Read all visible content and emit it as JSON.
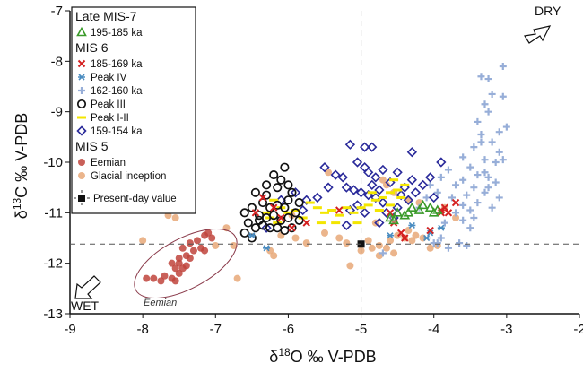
{
  "chart_data": {
    "type": "scatter",
    "xlabel": "δ18O ‰ V-PDB",
    "ylabel": "δ13C ‰ V-PDB",
    "xlim": [
      -9,
      -2
    ],
    "ylim": [
      -13,
      -7
    ],
    "xticks": [
      "-9",
      "-8",
      "-7",
      "-6",
      "-5",
      "-4",
      "-3",
      "-2"
    ],
    "yticks": [
      "-7",
      "-8",
      "-9",
      "-10",
      "-11",
      "-12",
      "-13"
    ],
    "grid": false,
    "legend_position": "top-left",
    "annotations": {
      "dry": "DRY",
      "wet": "WET",
      "eemian_label": "Eemian"
    },
    "reference_lines": {
      "x": -5,
      "y": -11.62
    },
    "legend_groups": [
      {
        "title": "Late MIS-7",
        "entries": [
          "195-185 ka"
        ]
      },
      {
        "title": "MIS 6",
        "entries": [
          "185-169 ka",
          "Peak IV",
          "162-160 ka",
          "Peak III",
          "Peak  I-II",
          "159-154 ka"
        ]
      },
      {
        "title": "MIS 5",
        "entries": [
          "Eemian",
          "Glacial inception"
        ]
      },
      {
        "title": "",
        "entries": [
          "Present-day value"
        ]
      }
    ],
    "series": [
      {
        "name": "195-185 ka",
        "marker": "triangle",
        "color": "#3a9a2a",
        "points": [
          [
            -4.6,
            -11.1
          ],
          [
            -4.5,
            -11.0
          ],
          [
            -4.4,
            -11.05
          ],
          [
            -4.3,
            -10.9
          ],
          [
            -4.2,
            -10.95
          ],
          [
            -4.15,
            -10.85
          ],
          [
            -4.05,
            -10.9
          ],
          [
            -3.95,
            -10.95
          ],
          [
            -4.55,
            -11.15
          ],
          [
            -4.35,
            -11.0
          ],
          [
            -4.0,
            -11.0
          ]
        ]
      },
      {
        "name": "185-169 ka",
        "marker": "x",
        "color": "#d42020",
        "points": [
          [
            -6.45,
            -11.0
          ],
          [
            -6.35,
            -10.7
          ],
          [
            -6.2,
            -10.9
          ],
          [
            -6.1,
            -11.1
          ],
          [
            -5.95,
            -11.3
          ],
          [
            -5.75,
            -11.2
          ],
          [
            -5.3,
            -10.95
          ],
          [
            -4.6,
            -11.0
          ],
          [
            -4.55,
            -11.2
          ],
          [
            -4.45,
            -11.4
          ],
          [
            -3.9,
            -11.0
          ],
          [
            -3.85,
            -10.9
          ],
          [
            -3.8,
            -11.0
          ],
          [
            -3.7,
            -10.8
          ],
          [
            -4.05,
            -11.35
          ],
          [
            -4.4,
            -11.5
          ],
          [
            -3.9,
            -10.95
          ]
        ]
      },
      {
        "name": "Peak IV",
        "marker": "asterisk",
        "color": "#4a8cc0",
        "points": [
          [
            -6.5,
            -11.45
          ],
          [
            -6.3,
            -11.7
          ],
          [
            -4.6,
            -11.45
          ],
          [
            -4.3,
            -11.25
          ],
          [
            -4.1,
            -11.5
          ],
          [
            -4.05,
            -11.4
          ],
          [
            -3.9,
            -11.3
          ]
        ]
      },
      {
        "name": "162-160 ka",
        "marker": "plus",
        "color": "#97aed8",
        "points": [
          [
            -3.05,
            -8.1
          ],
          [
            -3.35,
            -8.3
          ],
          [
            -3.25,
            -8.35
          ],
          [
            -3.2,
            -8.65
          ],
          [
            -3.05,
            -8.7
          ],
          [
            -3.3,
            -8.85
          ],
          [
            -3.25,
            -9.0
          ],
          [
            -3.4,
            -9.2
          ],
          [
            -3.0,
            -9.3
          ],
          [
            -3.1,
            -9.4
          ],
          [
            -3.35,
            -9.45
          ],
          [
            -3.2,
            -9.6
          ],
          [
            -3.45,
            -9.7
          ],
          [
            -3.1,
            -9.8
          ],
          [
            -3.6,
            -9.9
          ],
          [
            -3.3,
            -9.95
          ],
          [
            -3.15,
            -10.0
          ],
          [
            -3.5,
            -10.1
          ],
          [
            -3.8,
            -10.15
          ],
          [
            -3.4,
            -10.25
          ],
          [
            -3.25,
            -10.3
          ],
          [
            -3.6,
            -10.35
          ],
          [
            -3.9,
            -10.3
          ],
          [
            -3.7,
            -10.45
          ],
          [
            -3.45,
            -10.5
          ],
          [
            -3.3,
            -10.6
          ],
          [
            -3.55,
            -10.65
          ],
          [
            -3.75,
            -10.7
          ],
          [
            -3.4,
            -10.8
          ],
          [
            -3.6,
            -10.85
          ],
          [
            -3.2,
            -10.9
          ],
          [
            -3.5,
            -10.95
          ],
          [
            -3.7,
            -11.0
          ],
          [
            -3.45,
            -11.1
          ],
          [
            -3.25,
            -10.5
          ],
          [
            -3.1,
            -10.7
          ],
          [
            -3.95,
            -10.6
          ],
          [
            -4.05,
            -10.45
          ],
          [
            -4.1,
            -10.7
          ],
          [
            -4.2,
            -10.9
          ],
          [
            -3.85,
            -11.2
          ],
          [
            -3.6,
            -11.15
          ],
          [
            -3.5,
            -11.3
          ],
          [
            -3.9,
            -11.5
          ],
          [
            -3.95,
            -11.6
          ],
          [
            -3.8,
            -11.7
          ],
          [
            -4.7,
            -11.8
          ],
          [
            -3.65,
            -11.6
          ],
          [
            -3.55,
            -11.65
          ],
          [
            -4.0,
            -11.6
          ],
          [
            -3.3,
            -10.2
          ],
          [
            -3.05,
            -9.95
          ],
          [
            -3.15,
            -10.4
          ],
          [
            -3.35,
            -9.6
          ]
        ]
      },
      {
        "name": "Peak III",
        "marker": "circle-open",
        "color": "#111111",
        "points": [
          [
            -6.05,
            -10.1
          ],
          [
            -6.2,
            -10.25
          ],
          [
            -6.1,
            -10.35
          ],
          [
            -6.3,
            -10.45
          ],
          [
            -6.15,
            -10.5
          ],
          [
            -6.0,
            -10.45
          ],
          [
            -5.95,
            -10.6
          ],
          [
            -6.45,
            -10.6
          ],
          [
            -6.35,
            -10.8
          ],
          [
            -6.25,
            -10.9
          ],
          [
            -6.15,
            -10.85
          ],
          [
            -6.05,
            -10.9
          ],
          [
            -6.5,
            -10.9
          ],
          [
            -6.6,
            -11.0
          ],
          [
            -6.4,
            -11.05
          ],
          [
            -6.3,
            -11.1
          ],
          [
            -6.2,
            -11.05
          ],
          [
            -6.1,
            -11.15
          ],
          [
            -6.0,
            -11.1
          ],
          [
            -5.9,
            -11.0
          ],
          [
            -5.85,
            -11.15
          ],
          [
            -6.55,
            -11.2
          ],
          [
            -6.45,
            -11.3
          ],
          [
            -6.35,
            -11.25
          ],
          [
            -6.25,
            -11.3
          ],
          [
            -6.15,
            -11.3
          ],
          [
            -6.05,
            -11.35
          ],
          [
            -5.95,
            -11.3
          ],
          [
            -6.6,
            -11.4
          ],
          [
            -6.5,
            -11.5
          ],
          [
            -6.4,
            -11.15
          ],
          [
            -6.0,
            -10.75
          ],
          [
            -5.85,
            -10.8
          ],
          [
            -6.3,
            -10.65
          ]
        ]
      },
      {
        "name": "Peak  I-II",
        "marker": "dash",
        "color": "#f3e600",
        "points": [
          [
            -6.2,
            -10.75
          ],
          [
            -6.1,
            -10.9
          ],
          [
            -6.0,
            -11.0
          ],
          [
            -6.25,
            -11.1
          ],
          [
            -6.15,
            -11.2
          ],
          [
            -5.9,
            -10.95
          ],
          [
            -5.7,
            -10.8
          ],
          [
            -5.6,
            -10.9
          ],
          [
            -5.5,
            -11.0
          ],
          [
            -5.4,
            -10.95
          ],
          [
            -5.3,
            -11.05
          ],
          [
            -5.2,
            -10.9
          ],
          [
            -5.1,
            -11.0
          ],
          [
            -5.0,
            -10.9
          ],
          [
            -4.9,
            -10.85
          ],
          [
            -4.8,
            -10.75
          ],
          [
            -4.7,
            -10.7
          ],
          [
            -4.6,
            -10.6
          ],
          [
            -4.5,
            -10.55
          ],
          [
            -4.4,
            -10.45
          ],
          [
            -4.6,
            -10.85
          ],
          [
            -4.75,
            -10.95
          ],
          [
            -5.35,
            -11.2
          ],
          [
            -5.55,
            -11.2
          ],
          [
            -5.8,
            -11.1
          ],
          [
            -4.55,
            -10.35
          ],
          [
            -4.45,
            -10.7
          ],
          [
            -4.85,
            -10.6
          ],
          [
            -5.05,
            -11.2
          ],
          [
            -6.3,
            -11.0
          ]
        ]
      },
      {
        "name": "159-154 ka",
        "marker": "diamond-open",
        "color": "#2a2a9a",
        "points": [
          [
            -5.15,
            -9.65
          ],
          [
            -4.95,
            -9.7
          ],
          [
            -4.85,
            -9.7
          ],
          [
            -4.3,
            -9.8
          ],
          [
            -5.5,
            -10.1
          ],
          [
            -5.35,
            -10.25
          ],
          [
            -5.25,
            -10.3
          ],
          [
            -5.05,
            -10.0
          ],
          [
            -4.95,
            -10.1
          ],
          [
            -4.9,
            -10.2
          ],
          [
            -4.8,
            -10.3
          ],
          [
            -4.7,
            -10.15
          ],
          [
            -4.6,
            -10.4
          ],
          [
            -4.5,
            -10.2
          ],
          [
            -4.4,
            -10.5
          ],
          [
            -5.2,
            -10.5
          ],
          [
            -5.1,
            -10.55
          ],
          [
            -5.0,
            -10.6
          ],
          [
            -4.9,
            -10.65
          ],
          [
            -4.8,
            -10.7
          ],
          [
            -4.7,
            -10.8
          ],
          [
            -5.05,
            -10.85
          ],
          [
            -5.15,
            -10.95
          ],
          [
            -4.95,
            -11.0
          ],
          [
            -4.85,
            -10.45
          ],
          [
            -4.75,
            -10.55
          ],
          [
            -5.45,
            -10.5
          ],
          [
            -5.6,
            -10.7
          ],
          [
            -5.75,
            -10.75
          ],
          [
            -5.9,
            -10.6
          ],
          [
            -6.1,
            -10.75
          ],
          [
            -5.8,
            -10.95
          ],
          [
            -6.3,
            -11.3
          ],
          [
            -4.45,
            -10.65
          ],
          [
            -4.35,
            -10.75
          ],
          [
            -4.25,
            -10.6
          ],
          [
            -4.15,
            -10.45
          ],
          [
            -4.65,
            -11.0
          ],
          [
            -4.55,
            -11.1
          ],
          [
            -4.75,
            -11.2
          ],
          [
            -5.2,
            -11.25
          ],
          [
            -4.05,
            -10.3
          ],
          [
            -4.5,
            -10.9
          ],
          [
            -4.3,
            -10.35
          ],
          [
            -4.0,
            -10.7
          ],
          [
            -3.9,
            -10.0
          ]
        ]
      },
      {
        "name": "Eemian",
        "marker": "circle-filled",
        "color": "#c0443c",
        "points": [
          [
            -7.95,
            -12.3
          ],
          [
            -7.85,
            -12.3
          ],
          [
            -7.75,
            -12.35
          ],
          [
            -7.7,
            -12.25
          ],
          [
            -7.6,
            -12.3
          ],
          [
            -7.55,
            -12.35
          ],
          [
            -7.5,
            -12.2
          ],
          [
            -7.6,
            -12.0
          ],
          [
            -7.5,
            -12.0
          ],
          [
            -7.45,
            -12.1
          ],
          [
            -7.4,
            -12.05
          ],
          [
            -7.5,
            -11.9
          ],
          [
            -7.4,
            -11.85
          ],
          [
            -7.35,
            -11.9
          ],
          [
            -7.3,
            -11.75
          ],
          [
            -7.35,
            -11.6
          ],
          [
            -7.25,
            -11.55
          ],
          [
            -7.2,
            -11.7
          ],
          [
            -7.15,
            -11.45
          ],
          [
            -7.1,
            -11.4
          ],
          [
            -7.05,
            -11.5
          ],
          [
            -7.15,
            -11.75
          ],
          [
            -7.45,
            -11.7
          ],
          [
            -7.55,
            -12.1
          ]
        ]
      },
      {
        "name": "Glacial inception",
        "marker": "circle-filled",
        "color": "#e8a878",
        "points": [
          [
            -8.0,
            -11.55
          ],
          [
            -7.65,
            -11.05
          ],
          [
            -7.55,
            -11.1
          ],
          [
            -7.0,
            -11.65
          ],
          [
            -6.75,
            -11.65
          ],
          [
            -6.7,
            -12.3
          ],
          [
            -6.25,
            -11.75
          ],
          [
            -6.2,
            -11.85
          ],
          [
            -6.1,
            -11.45
          ],
          [
            -5.9,
            -11.5
          ],
          [
            -5.75,
            -11.6
          ],
          [
            -5.5,
            -11.4
          ],
          [
            -5.3,
            -11.5
          ],
          [
            -5.2,
            -11.6
          ],
          [
            -5.15,
            -12.05
          ],
          [
            -5.0,
            -11.75
          ],
          [
            -4.9,
            -11.55
          ],
          [
            -4.85,
            -11.7
          ],
          [
            -4.75,
            -11.65
          ],
          [
            -4.65,
            -11.7
          ],
          [
            -4.6,
            -11.55
          ],
          [
            -4.5,
            -11.45
          ],
          [
            -4.4,
            -11.5
          ],
          [
            -4.3,
            -11.55
          ],
          [
            -4.25,
            -11.45
          ],
          [
            -4.15,
            -11.5
          ],
          [
            -4.05,
            -11.7
          ],
          [
            -3.95,
            -11.65
          ],
          [
            -4.55,
            -11.8
          ],
          [
            -4.75,
            -11.85
          ],
          [
            -4.35,
            -11.35
          ],
          [
            -4.7,
            -10.35
          ],
          [
            -4.65,
            -10.45
          ],
          [
            -4.55,
            -10.6
          ],
          [
            -4.35,
            -10.75
          ],
          [
            -4.2,
            -10.8
          ],
          [
            -5.45,
            -10.2
          ],
          [
            -3.85,
            -10.9
          ],
          [
            -3.7,
            -11.1
          ],
          [
            -6.85,
            -11.3
          ],
          [
            -5.95,
            -11.05
          ],
          [
            -4.8,
            -11.2
          ]
        ]
      },
      {
        "name": "Present-day value",
        "marker": "square",
        "color": "#111111",
        "points": [
          [
            -5.0,
            -11.62
          ]
        ]
      }
    ]
  }
}
